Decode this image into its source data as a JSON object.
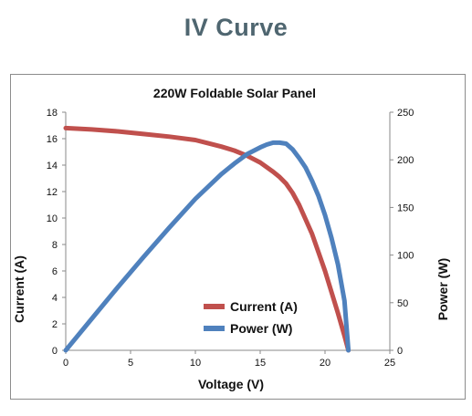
{
  "page": {
    "title": "IV Curve"
  },
  "chart_data": {
    "type": "line",
    "title": "220W Foldable Solar Panel",
    "xlabel": "Voltage (V)",
    "ylabel": "Current (A)",
    "y2label": "Power (W)",
    "xlim": [
      0,
      25
    ],
    "ylim": [
      0,
      18
    ],
    "y2lim": [
      0,
      250
    ],
    "xticks": [
      0,
      5,
      10,
      15,
      20,
      25
    ],
    "yticks": [
      0,
      2,
      4,
      6,
      8,
      10,
      12,
      14,
      16,
      18
    ],
    "y2ticks": [
      0,
      50,
      100,
      150,
      200,
      250
    ],
    "grid": false,
    "legend_position": "center-bottom",
    "series": [
      {
        "name": "Current (A)",
        "axis": "left",
        "color": "#c0504d",
        "x": [
          0,
          2,
          4,
          6,
          8,
          10,
          11,
          12,
          13,
          14,
          15,
          16,
          16.5,
          17,
          17.5,
          18,
          18.5,
          19,
          19.5,
          20,
          20.5,
          21,
          21.5,
          21.8
        ],
        "y": [
          16.8,
          16.7,
          16.55,
          16.35,
          16.15,
          15.9,
          15.65,
          15.4,
          15.1,
          14.7,
          14.2,
          13.5,
          13.1,
          12.6,
          11.9,
          11.0,
          9.9,
          8.8,
          7.4,
          6.0,
          4.4,
          2.8,
          1.1,
          0
        ]
      },
      {
        "name": "Power (W)",
        "axis": "right",
        "color": "#4f81bd",
        "x": [
          0,
          2,
          4,
          6,
          8,
          10,
          12,
          13,
          14,
          15,
          15.5,
          16,
          16.5,
          17,
          17.5,
          18,
          18.5,
          19,
          19.5,
          20,
          20.5,
          21,
          21.5,
          21.8
        ],
        "y": [
          0,
          33,
          66,
          98,
          129,
          159,
          185,
          196,
          206,
          213,
          216,
          218,
          218,
          217,
          211,
          202,
          192,
          178,
          162,
          142,
          118,
          90,
          52,
          0
        ]
      }
    ]
  }
}
